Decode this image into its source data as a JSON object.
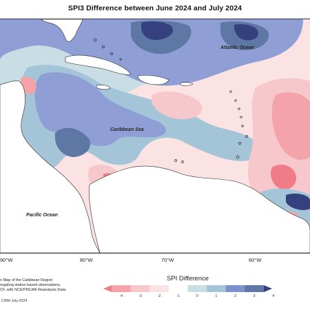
{
  "title": "SPI3 Difference between June 2024 and July 2024",
  "ocean_labels": {
    "atlantic": "Atlantic Ocean",
    "caribbean": "Caribbean Sea",
    "pacific": "Pacific Ocean"
  },
  "longitude_labels": [
    "90°W",
    "80°W",
    "70°W",
    "60°W"
  ],
  "source_notes": [
    "n Map of the Caribbean Region",
    "regating station based observations,",
    "CF, with NCEP/NCAR Reanalysis Data."
  ],
  "credit": "CIMH July-2024",
  "legend": {
    "title": "SPI Difference",
    "ticks": [
      "-4",
      "-3",
      "-2",
      "-1",
      "0",
      "1",
      "2",
      "3",
      "4"
    ],
    "colors": [
      "#f07c87",
      "#f4a3aa",
      "#f7c8cb",
      "#fbe3e4",
      "#ffffff",
      "#c8dde4",
      "#a4c4d8",
      "#7f91cc",
      "#5f77a5",
      "#35407f"
    ]
  }
}
